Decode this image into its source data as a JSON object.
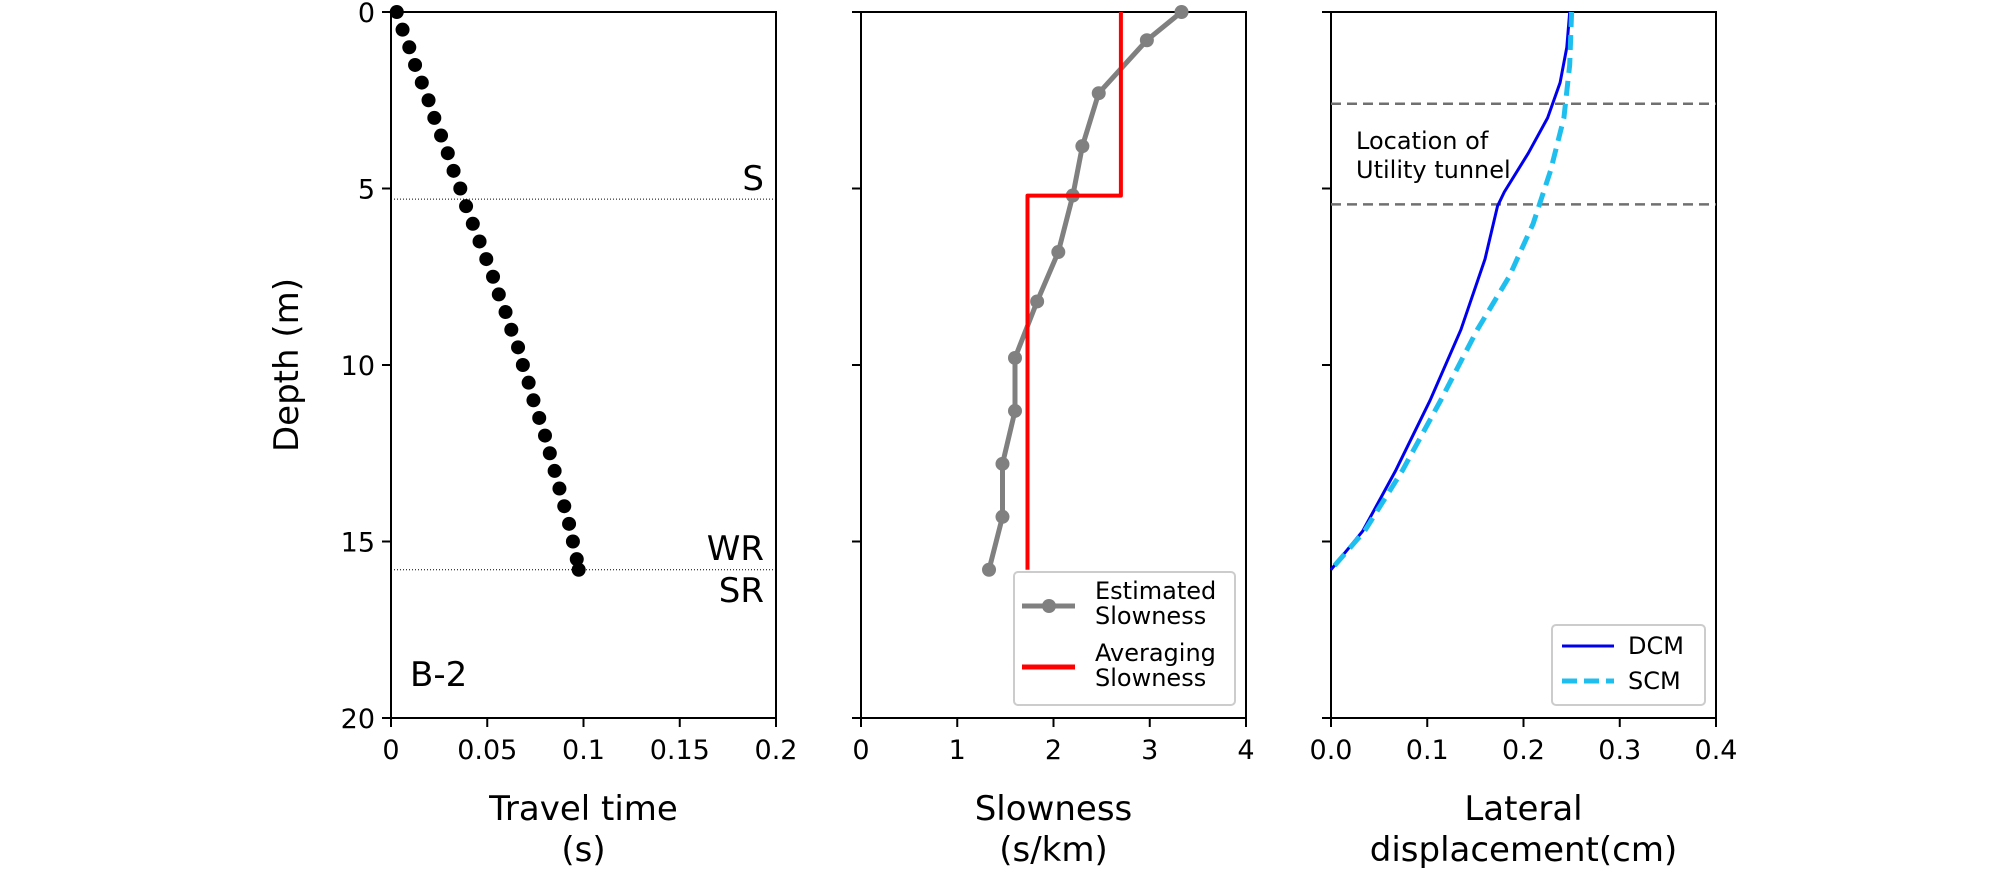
{
  "chart_data": [
    {
      "type": "scatter",
      "xlabel": "Travel time\n(s)",
      "ylabel": "Depth (m)",
      "xlim": [
        0,
        0.2
      ],
      "ylim": [
        20,
        0
      ],
      "xticks": [
        "0",
        "0.05",
        "0.1",
        "0.15",
        "0.2"
      ],
      "yticks": [
        "0",
        "5",
        "10",
        "15",
        "20"
      ],
      "annotations": [
        "S",
        "WR",
        "SR",
        "B-2"
      ],
      "reference_lines": [
        5.3,
        15.8
      ],
      "series": [
        {
          "color": "#000000",
          "points": [
            [
              0.003,
              0
            ],
            [
              0.006,
              0.5
            ],
            [
              0.0095,
              1.0
            ],
            [
              0.0125,
              1.5
            ],
            [
              0.016,
              2.0
            ],
            [
              0.0195,
              2.5
            ],
            [
              0.0225,
              3.0
            ],
            [
              0.026,
              3.5
            ],
            [
              0.0295,
              4.0
            ],
            [
              0.0325,
              4.5
            ],
            [
              0.036,
              5.0
            ],
            [
              0.039,
              5.5
            ],
            [
              0.0425,
              6.0
            ],
            [
              0.046,
              6.5
            ],
            [
              0.0495,
              7.0
            ],
            [
              0.053,
              7.5
            ],
            [
              0.056,
              8.0
            ],
            [
              0.0595,
              8.5
            ],
            [
              0.0625,
              9.0
            ],
            [
              0.066,
              9.5
            ],
            [
              0.0685,
              10.0
            ],
            [
              0.0715,
              10.5
            ],
            [
              0.074,
              11.0
            ],
            [
              0.077,
              11.5
            ],
            [
              0.08,
              12.0
            ],
            [
              0.0825,
              12.5
            ],
            [
              0.085,
              13.0
            ],
            [
              0.0875,
              13.5
            ],
            [
              0.09,
              14.0
            ],
            [
              0.0925,
              14.5
            ],
            [
              0.0945,
              15.0
            ],
            [
              0.0965,
              15.5
            ],
            [
              0.0975,
              15.8
            ]
          ]
        }
      ]
    },
    {
      "type": "line",
      "xlabel": "Slowness\n(s/km)",
      "xlim": [
        0,
        4
      ],
      "ylim": [
        20,
        0
      ],
      "xticks": [
        "0",
        "1",
        "2",
        "3",
        "4"
      ],
      "legend": {
        "placement": "lower-right",
        "entries": [
          "Estimated\nSlowness",
          "Averaging\nSlowness"
        ]
      },
      "series": [
        {
          "name": "Estimated\nSlowness",
          "color": "#808080",
          "markers": true,
          "points": [
            [
              3.33,
              0.0
            ],
            [
              2.97,
              0.8
            ],
            [
              2.47,
              2.3
            ],
            [
              2.3,
              3.8
            ],
            [
              2.2,
              5.2
            ],
            [
              2.05,
              6.8
            ],
            [
              1.83,
              8.2
            ],
            [
              1.6,
              9.8
            ],
            [
              1.6,
              11.3
            ],
            [
              1.47,
              12.8
            ],
            [
              1.47,
              14.3
            ],
            [
              1.33,
              15.8
            ]
          ]
        },
        {
          "name": "Averaging\nSlowness",
          "color": "#ff0000",
          "markers": false,
          "points": [
            [
              2.7,
              0
            ],
            [
              2.7,
              5.2
            ],
            [
              1.73,
              5.2
            ],
            [
              1.73,
              15.8
            ]
          ]
        }
      ]
    },
    {
      "type": "line",
      "xlabel": "Lateral\ndisplacement(cm)",
      "xlim": [
        0,
        0.4
      ],
      "ylim": [
        20,
        0
      ],
      "xticks": [
        "0.0",
        "0.1",
        "0.2",
        "0.3",
        "0.4"
      ],
      "annotations": [
        "Location of\nUtility tunnel"
      ],
      "reference_lines": [
        2.6,
        5.45
      ],
      "legend": {
        "placement": "lower-right",
        "entries": [
          "DCM",
          "SCM"
        ]
      },
      "series": [
        {
          "name": "DCM",
          "color": "#0000ee",
          "style": "solid",
          "points": [
            [
              0.248,
              0
            ],
            [
              0.245,
              1.0
            ],
            [
              0.238,
              2.0
            ],
            [
              0.225,
              3.0
            ],
            [
              0.205,
              4.0
            ],
            [
              0.18,
              5.1
            ],
            [
              0.173,
              5.5
            ],
            [
              0.16,
              7.0
            ],
            [
              0.135,
              9.0
            ],
            [
              0.103,
              11.0
            ],
            [
              0.067,
              13.0
            ],
            [
              0.033,
              14.7
            ],
            [
              0.0,
              15.8
            ]
          ]
        },
        {
          "name": "SCM",
          "color": "#1ebfef",
          "style": "dashed",
          "points": [
            [
              0.25,
              0
            ],
            [
              0.248,
              1.5
            ],
            [
              0.242,
              3.0
            ],
            [
              0.228,
              4.5
            ],
            [
              0.21,
              6.0
            ],
            [
              0.185,
              7.5
            ],
            [
              0.152,
              9.0
            ],
            [
              0.114,
              11.0
            ],
            [
              0.074,
              13.0
            ],
            [
              0.035,
              14.7
            ],
            [
              0.0,
              15.8
            ]
          ]
        }
      ]
    }
  ]
}
